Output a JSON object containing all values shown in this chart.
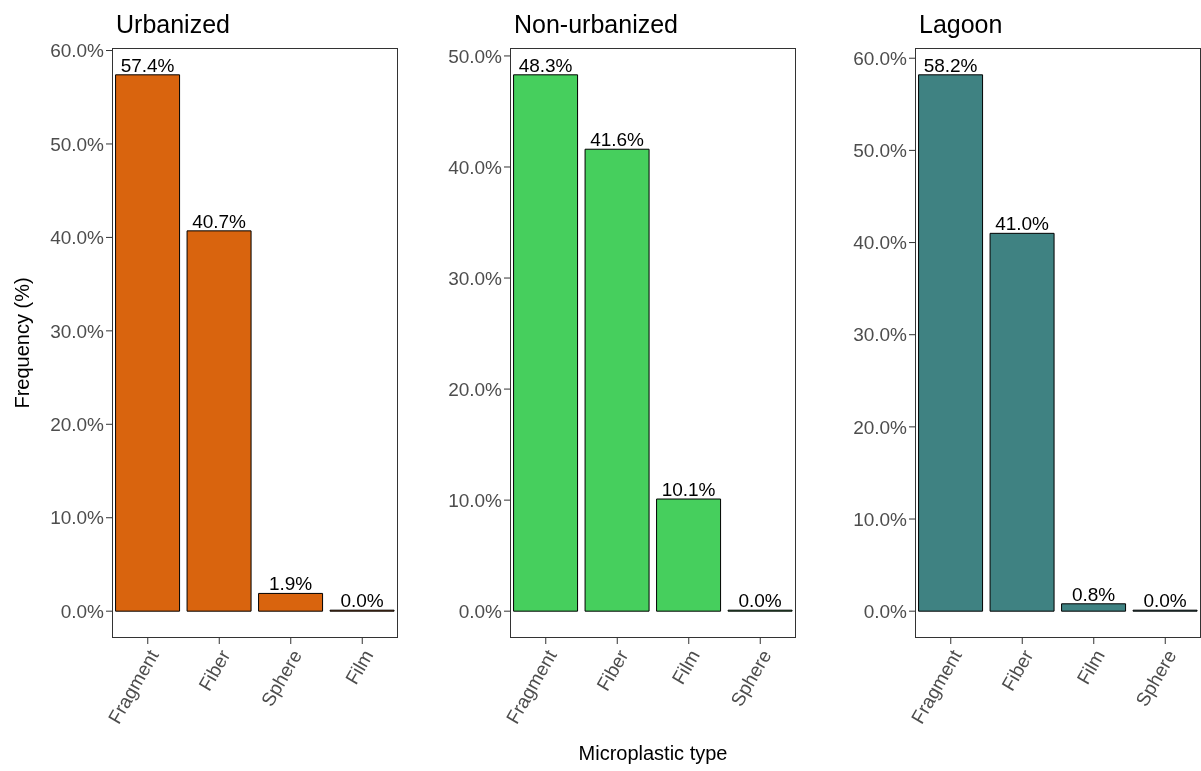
{
  "chart_data": [
    {
      "type": "bar",
      "title": "Urbanized",
      "ylabel": "Frequency (%)",
      "categories": [
        "Fragment",
        "Fiber",
        "Sphere",
        "Film"
      ],
      "values": [
        57.4,
        40.7,
        1.9,
        0.0
      ],
      "value_labels": [
        "57.4%",
        "40.7%",
        "1.9%",
        "0.0%"
      ],
      "color": "#d9640e",
      "ylim": [
        -2.87,
        60.27
      ],
      "yticks": [
        {
          "value": 0,
          "label": "0.0%"
        },
        {
          "value": 10,
          "label": "10.0%"
        },
        {
          "value": 20,
          "label": "20.0%"
        },
        {
          "value": 30,
          "label": "30.0%"
        },
        {
          "value": 40,
          "label": "40.0%"
        },
        {
          "value": 50,
          "label": "50.0%"
        },
        {
          "value": 60,
          "label": "60.0%"
        }
      ]
    },
    {
      "type": "bar",
      "title": "Non-urbanized",
      "xlabel": "Microplastic type",
      "categories": [
        "Fragment",
        "Fiber",
        "Film",
        "Sphere"
      ],
      "values": [
        48.3,
        41.6,
        10.1,
        0.0
      ],
      "value_labels": [
        "48.3%",
        "41.6%",
        "10.1%",
        "0.0%"
      ],
      "color": "#46cf5d",
      "ylim": [
        -2.415,
        50.715
      ],
      "yticks": [
        {
          "value": 0,
          "label": "0.0%"
        },
        {
          "value": 10,
          "label": "10.0%"
        },
        {
          "value": 20,
          "label": "20.0%"
        },
        {
          "value": 30,
          "label": "30.0%"
        },
        {
          "value": 40,
          "label": "40.0%"
        },
        {
          "value": 50,
          "label": "50.0%"
        }
      ]
    },
    {
      "type": "bar",
      "title": "Lagoon",
      "categories": [
        "Fragment",
        "Fiber",
        "Film",
        "Sphere"
      ],
      "values": [
        58.2,
        41.0,
        0.8,
        0.0
      ],
      "value_labels": [
        "58.2%",
        "41.0%",
        "0.8%",
        "0.0%"
      ],
      "color": "#3f8282",
      "ylim": [
        -2.91,
        61.11
      ],
      "yticks": [
        {
          "value": 0,
          "label": "0.0%"
        },
        {
          "value": 10,
          "label": "10.0%"
        },
        {
          "value": 20,
          "label": "20.0%"
        },
        {
          "value": 30,
          "label": "30.0%"
        },
        {
          "value": 40,
          "label": "40.0%"
        },
        {
          "value": 50,
          "label": "50.0%"
        },
        {
          "value": 60,
          "label": "60.0%"
        }
      ]
    }
  ]
}
